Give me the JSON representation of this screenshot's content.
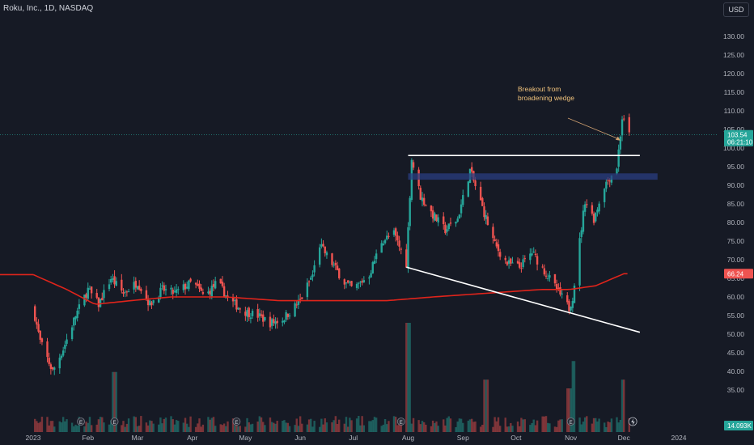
{
  "header": {
    "symbol_title": "Roku, Inc., 1D, NASDAQ",
    "currency": "USD"
  },
  "colors": {
    "background": "#161a25",
    "up": "#26a69a",
    "down": "#ef5350",
    "sma": "#e0241b",
    "resistance_line": "#ffffff",
    "support_zone": "#2a3e80",
    "annotation_text": "#f0c27b"
  },
  "icons": [
    "earnings-icon",
    "lightning-icon"
  ],
  "chart_data": {
    "type": "candlestick",
    "title": "Roku, Inc., 1D, NASDAQ",
    "interval": "1D",
    "currency": "USD",
    "ylim": [
      30,
      137
    ],
    "grid": false,
    "y_ticks": [
      "130.00",
      "125.00",
      "120.00",
      "115.00",
      "110.00",
      "105.00",
      "100.00",
      "95.00",
      "90.00",
      "85.00",
      "80.00",
      "75.00",
      "70.00",
      "65.00",
      "60.00",
      "55.00",
      "50.00",
      "45.00",
      "40.00",
      "35.00"
    ],
    "x_ticks": [
      "2023",
      "Feb",
      "Mar",
      "Apr",
      "May",
      "Jun",
      "Jul",
      "Aug",
      "Sep",
      "Oct",
      "Nov",
      "Dec",
      "2024"
    ],
    "last_price": "103.54",
    "countdown": "06:21:10",
    "sma_label": "66.24",
    "volume_label": "14.093K",
    "price_path": [
      [
        "2023-01-01",
        57
      ],
      [
        "2023-01-05",
        48
      ],
      [
        "2023-01-12",
        40
      ],
      [
        "2023-01-18",
        46
      ],
      [
        "2023-01-25",
        55
      ],
      [
        "2023-02-01",
        62
      ],
      [
        "2023-02-07",
        58
      ],
      [
        "2023-02-14",
        65
      ],
      [
        "2023-02-21",
        61
      ],
      [
        "2023-03-01",
        64
      ],
      [
        "2023-03-08",
        58
      ],
      [
        "2023-03-15",
        62
      ],
      [
        "2023-03-22",
        61
      ],
      [
        "2023-04-01",
        64
      ],
      [
        "2023-04-08",
        60
      ],
      [
        "2023-04-15",
        64
      ],
      [
        "2023-04-22",
        59
      ],
      [
        "2023-05-01",
        56
      ],
      [
        "2023-05-08",
        55
      ],
      [
        "2023-05-15",
        53
      ],
      [
        "2023-05-22",
        54
      ],
      [
        "2023-06-01",
        59
      ],
      [
        "2023-06-08",
        66
      ],
      [
        "2023-06-12",
        74
      ],
      [
        "2023-06-19",
        69
      ],
      [
        "2023-06-26",
        64
      ],
      [
        "2023-07-01",
        62
      ],
      [
        "2023-07-10",
        66
      ],
      [
        "2023-07-17",
        75
      ],
      [
        "2023-07-24",
        77
      ],
      [
        "2023-07-31",
        69
      ],
      [
        "2023-08-03",
        97
      ],
      [
        "2023-08-08",
        87
      ],
      [
        "2023-08-15",
        82
      ],
      [
        "2023-08-22",
        78
      ],
      [
        "2023-08-29",
        81
      ],
      [
        "2023-09-05",
        94
      ],
      [
        "2023-09-12",
        84
      ],
      [
        "2023-09-19",
        74
      ],
      [
        "2023-09-26",
        69
      ],
      [
        "2023-10-03",
        68
      ],
      [
        "2023-10-10",
        72
      ],
      [
        "2023-10-17",
        67
      ],
      [
        "2023-10-24",
        62
      ],
      [
        "2023-10-31",
        57
      ],
      [
        "2023-11-02",
        60
      ],
      [
        "2023-11-06",
        75
      ],
      [
        "2023-11-09",
        86
      ],
      [
        "2023-11-14",
        81
      ],
      [
        "2023-11-20",
        90
      ],
      [
        "2023-11-27",
        95
      ],
      [
        "2023-11-30",
        108
      ],
      [
        "2023-12-04",
        103.5
      ]
    ],
    "sma_series": [
      [
        "2023-01-01",
        66
      ],
      [
        "2023-01-20",
        62
      ],
      [
        "2023-02-05",
        58
      ],
      [
        "2023-02-25",
        59
      ],
      [
        "2023-03-20",
        60
      ],
      [
        "2023-04-20",
        60
      ],
      [
        "2023-05-20",
        59
      ],
      [
        "2023-06-20",
        59
      ],
      [
        "2023-07-20",
        59
      ],
      [
        "2023-08-15",
        60
      ],
      [
        "2023-09-15",
        61
      ],
      [
        "2023-10-15",
        62
      ],
      [
        "2023-10-31",
        62
      ],
      [
        "2023-11-15",
        63
      ],
      [
        "2023-12-01",
        66.24
      ]
    ],
    "volume_peaks": [
      [
        "2023-02-16",
        0.55
      ],
      [
        "2023-08-01",
        1.0
      ],
      [
        "2023-09-14",
        0.48
      ],
      [
        "2023-11-02",
        0.65
      ],
      [
        "2023-12-01",
        0.48
      ],
      [
        "2023-10-31",
        0.4
      ]
    ],
    "annotations": [
      {
        "kind": "horizontal_line",
        "label": "",
        "value": 98,
        "from": "2023-08-01",
        "to": "2023-12-10"
      },
      {
        "kind": "zone",
        "low": 91.5,
        "high": 93.2,
        "from": "2023-08-01",
        "to": "2023-12-20"
      },
      {
        "kind": "trendline",
        "points": [
          [
            "2023-07-31",
            68
          ],
          [
            "2023-12-10",
            50.5
          ]
        ]
      },
      {
        "kind": "text_arrow",
        "text": [
          "Breakout from",
          "broadening wedge"
        ],
        "point_to": [
          "2023-11-29",
          102
        ]
      }
    ]
  }
}
